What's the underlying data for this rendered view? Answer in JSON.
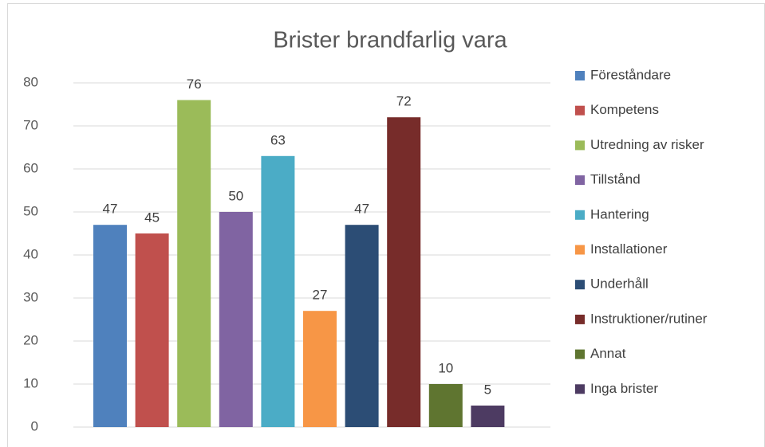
{
  "chart_data": {
    "type": "bar",
    "title": "Brister brandfarlig vara",
    "series": [
      {
        "name": "Föreståndare",
        "color": "#4f81bd",
        "values": [
          47
        ]
      },
      {
        "name": "Kompetens",
        "color": "#c0504d",
        "values": [
          45
        ]
      },
      {
        "name": "Utredning av risker",
        "color": "#9bbb59",
        "values": [
          76
        ]
      },
      {
        "name": "Tillstånd",
        "color": "#8064a2",
        "values": [
          50
        ]
      },
      {
        "name": "Hantering",
        "color": "#4bacc6",
        "values": [
          63
        ]
      },
      {
        "name": "Installationer",
        "color": "#f79646",
        "values": [
          27
        ]
      },
      {
        "name": "Underhåll",
        "color": "#2c4d75",
        "values": [
          47
        ]
      },
      {
        "name": "Instruktioner/rutiner",
        "color": "#772c2a",
        "values": [
          72
        ]
      },
      {
        "name": "Annat",
        "color": "#5f7530",
        "values": [
          10
        ]
      },
      {
        "name": "Inga brister",
        "color": "#4d3b62",
        "values": [
          5
        ]
      }
    ],
    "ylim": [
      0,
      80
    ],
    "yticks": [
      0,
      10,
      20,
      30,
      40,
      50,
      60,
      70,
      80
    ],
    "grid": true,
    "legend": "right",
    "data_labels": true
  }
}
